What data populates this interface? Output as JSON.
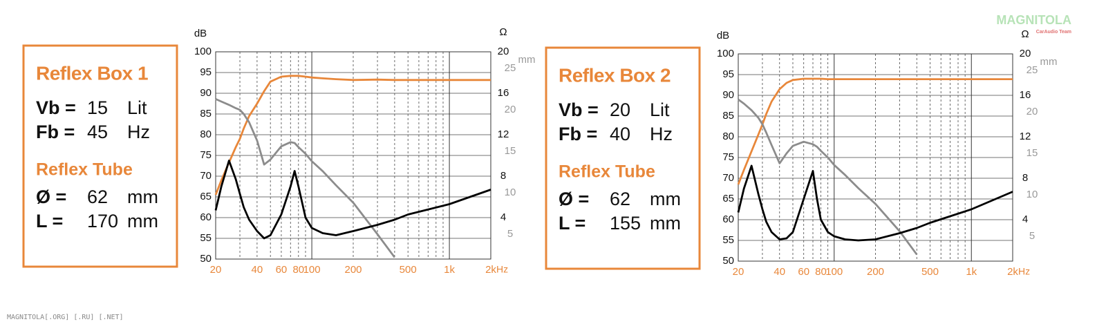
{
  "chart_data": [
    {
      "type": "line",
      "box": {
        "title": "Reflex Box 1",
        "params": [
          {
            "label": "Vb =",
            "value": "15",
            "unit": "Lit"
          },
          {
            "label": "Fb =",
            "value": "45",
            "unit": "Hz"
          }
        ],
        "tube_title": "Reflex Tube",
        "tube_params": [
          {
            "label": "Ø =",
            "value": "62",
            "unit": "mm"
          },
          {
            "label": "L =",
            "value": "170",
            "unit": "mm"
          }
        ]
      },
      "x": [
        20,
        22,
        25,
        28,
        30,
        32,
        35,
        40,
        45,
        50,
        60,
        70,
        75,
        80,
        90,
        100,
        120,
        150,
        200,
        300,
        400,
        500,
        1000,
        2000
      ],
      "xlim": [
        20,
        2000
      ],
      "log_x": true,
      "x_unit": "Hz",
      "xticks": [
        20,
        40,
        60,
        80,
        100,
        200,
        500,
        {
          "value": 1000,
          "label": "1k"
        },
        {
          "value": 2000,
          "label": "2k"
        }
      ],
      "xgrid_major": [
        100,
        1000
      ],
      "xgrid_minor": [
        30,
        40,
        50,
        60,
        70,
        80,
        90,
        200,
        300,
        400,
        500,
        600,
        700,
        800,
        900
      ],
      "ylabel": "dB",
      "ylim": [
        50,
        100
      ],
      "yticks": [
        50,
        55,
        60,
        65,
        70,
        75,
        80,
        85,
        90,
        95,
        100
      ],
      "y2label": "Ω",
      "y2lim": [
        0,
        20
      ],
      "y2ticks": [
        4,
        8,
        12,
        16,
        20
      ],
      "y3label": "mm",
      "y3lim": [
        2,
        27
      ],
      "y3ticks": [
        5,
        10,
        15,
        20,
        25
      ],
      "series": [
        {
          "color": "#e8873a",
          "axis": "y",
          "values": [
            65.5,
            69,
            73.3,
            77,
            79,
            81.5,
            84.5,
            87.5,
            90.5,
            92.8,
            94,
            94.2,
            94.2,
            94.2,
            94,
            93.8,
            93.6,
            93.4,
            93.2,
            93.3,
            93.2,
            93.2,
            93.2,
            93.2
          ]
        },
        {
          "color": "#8c8c8c",
          "axis": "y3",
          "values": [
            21.3,
            21,
            20.6,
            20.2,
            20,
            19.5,
            18.5,
            16.3,
            13.4,
            14,
            15.6,
            16.1,
            16,
            15.5,
            14.7,
            13.8,
            12.6,
            10.9,
            8.8,
            5,
            2.2,
            null,
            null,
            null
          ]
        },
        {
          "color": "#000000",
          "axis": "y2",
          "values": [
            4.7,
            7,
            9.5,
            7.7,
            6.3,
            5,
            3.8,
            2.7,
            2,
            2.3,
            4.3,
            7,
            8.5,
            7,
            4,
            3,
            2.5,
            2.3,
            2.7,
            3.3,
            3.8,
            4.3,
            5.3,
            6.7
          ]
        }
      ]
    },
    {
      "type": "line",
      "box": {
        "title": "Reflex Box 2",
        "params": [
          {
            "label": "Vb =",
            "value": "20",
            "unit": "Lit"
          },
          {
            "label": "Fb =",
            "value": "40",
            "unit": "Hz"
          }
        ],
        "tube_title": "Reflex Tube",
        "tube_params": [
          {
            "label": "Ø =",
            "value": "62",
            "unit": "mm"
          },
          {
            "label": "L =",
            "value": "155",
            "unit": "mm"
          }
        ]
      },
      "x": [
        20,
        22,
        25,
        28,
        30,
        32,
        35,
        40,
        45,
        50,
        60,
        70,
        75,
        80,
        90,
        100,
        120,
        150,
        200,
        300,
        400,
        500,
        1000,
        2000
      ],
      "xlim": [
        20,
        2000
      ],
      "log_x": true,
      "x_unit": "Hz",
      "xticks": [
        20,
        40,
        60,
        80,
        100,
        200,
        500,
        {
          "value": 1000,
          "label": "1k"
        },
        {
          "value": 2000,
          "label": "2k"
        }
      ],
      "xgrid_major": [
        100,
        1000
      ],
      "xgrid_minor": [
        30,
        40,
        50,
        60,
        70,
        80,
        90,
        200,
        300,
        400,
        500,
        600,
        700,
        800,
        900
      ],
      "ylabel": "dB",
      "ylim": [
        50,
        100
      ],
      "yticks": [
        50,
        55,
        60,
        65,
        70,
        75,
        80,
        85,
        90,
        95,
        100
      ],
      "y2label": "Ω",
      "y2lim": [
        0,
        20
      ],
      "y2ticks": [
        4,
        8,
        12,
        16,
        20
      ],
      "y3label": "mm",
      "y3lim": [
        2,
        27
      ],
      "y3ticks": [
        5,
        10,
        15,
        20,
        25
      ],
      "series": [
        {
          "color": "#e8873a",
          "axis": "y",
          "values": [
            68.5,
            72,
            76.5,
            80.5,
            83,
            85.5,
            88.5,
            91.5,
            93,
            93.7,
            94,
            94,
            94,
            94,
            93.9,
            93.9,
            93.9,
            93.9,
            93.9,
            93.9,
            93.9,
            93.9,
            93.9,
            93.9
          ]
        },
        {
          "color": "#8c8c8c",
          "axis": "y3",
          "values": [
            21.5,
            21,
            20.2,
            19.3,
            18.5,
            17.5,
            16,
            13.8,
            15,
            15.9,
            16.4,
            16.1,
            15.8,
            15.3,
            14.5,
            13.6,
            12.4,
            10.8,
            8.9,
            5.6,
            2.8,
            null,
            null,
            null
          ]
        },
        {
          "color": "#000000",
          "axis": "y2",
          "values": [
            4.7,
            7,
            9.2,
            6.5,
            5,
            3.8,
            2.8,
            2.1,
            2.2,
            2.8,
            6,
            8.7,
            6,
            4,
            2.8,
            2.4,
            2.1,
            2,
            2.1,
            2.7,
            3.2,
            3.7,
            5,
            6.7
          ]
        }
      ]
    }
  ],
  "footer": "MAGNITOLA[.ORG] [.RU] [.NET]",
  "watermark": {
    "title": "MAGNITOLA",
    "subtitle": "CarAudio Team"
  }
}
